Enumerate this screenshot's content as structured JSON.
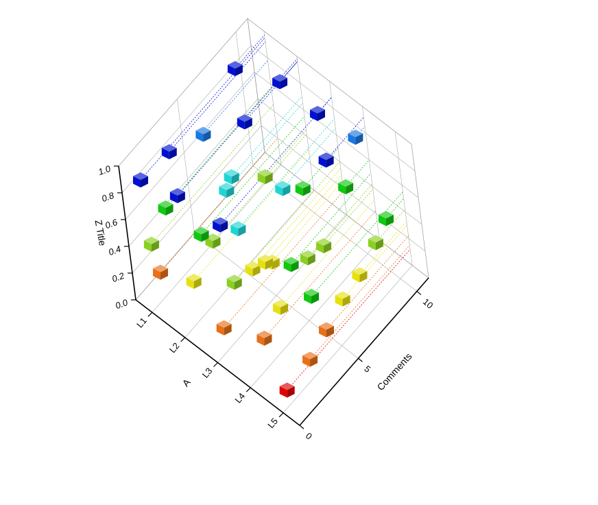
{
  "chart_data": {
    "type": "scatter3d",
    "x_label": "A",
    "y_label": "Comments",
    "z_label": "Z Title",
    "categories": [
      "L1",
      "L2",
      "L3",
      "L4",
      "L5"
    ],
    "x": [
      "L1",
      "L1",
      "L1",
      "L1",
      "L1",
      "L1",
      "L1",
      "L2",
      "L2",
      "L2",
      "L2",
      "L2",
      "L2",
      "L2",
      "L2",
      "L2",
      "L3",
      "L3",
      "L3",
      "L3",
      "L3",
      "L3",
      "L3",
      "L3",
      "L3",
      "L3",
      "L4",
      "L4",
      "L4",
      "L4",
      "L4",
      "L4",
      "L4",
      "L4",
      "L5",
      "L5",
      "L5",
      "L5",
      "L5",
      "L5",
      "L5",
      "L5"
    ],
    "y": [
      1.0,
      0.6,
      2.0,
      0.4,
      2.8,
      5.5,
      8.5,
      1.2,
      3.0,
      0.8,
      4.5,
      6.5,
      2.2,
      7.5,
      9.5,
      5.0,
      0.8,
      2.0,
      3.5,
      1.5,
      5.0,
      6.5,
      8.0,
      4.5,
      9.8,
      2.8,
      1.5,
      3.0,
      5.5,
      6.8,
      9.0,
      4.2,
      7.8,
      10.2,
      0.5,
      2.5,
      4.0,
      5.5,
      7.0,
      8.5,
      9.5,
      3.2
    ],
    "z": [
      0.2,
      0.45,
      0.58,
      0.95,
      0.92,
      0.78,
      0.97,
      0.3,
      0.42,
      0.98,
      0.65,
      0.96,
      0.55,
      0.45,
      0.96,
      0.7,
      0.18,
      0.4,
      0.35,
      0.88,
      0.25,
      0.65,
      0.5,
      0.3,
      0.88,
      0.72,
      0.22,
      0.3,
      0.42,
      0.38,
      0.6,
      0.5,
      0.92,
      0.85,
      0.12,
      0.15,
      0.22,
      0.3,
      0.33,
      0.42,
      0.5,
      0.55
    ],
    "ylim": [
      0,
      11
    ],
    "yticks": [
      0,
      5,
      10
    ],
    "zlim": [
      0,
      1
    ],
    "zticks": [
      {
        "value": 0,
        "label": "0.0"
      },
      {
        "value": 0.2,
        "label": "0.2"
      },
      {
        "value": 0.4,
        "label": "0.4"
      },
      {
        "value": 0.6,
        "label": "0.6"
      },
      {
        "value": 0.8,
        "label": "0.8"
      },
      {
        "value": 1,
        "label": "1.0"
      }
    ],
    "colormap": [
      "#e00000",
      "#e87018",
      "#e6e010",
      "#8ad020",
      "#10c810",
      "#20d4d4",
      "#1a78e0",
      "#0010d0"
    ],
    "grid": true,
    "drop_lines": true
  }
}
